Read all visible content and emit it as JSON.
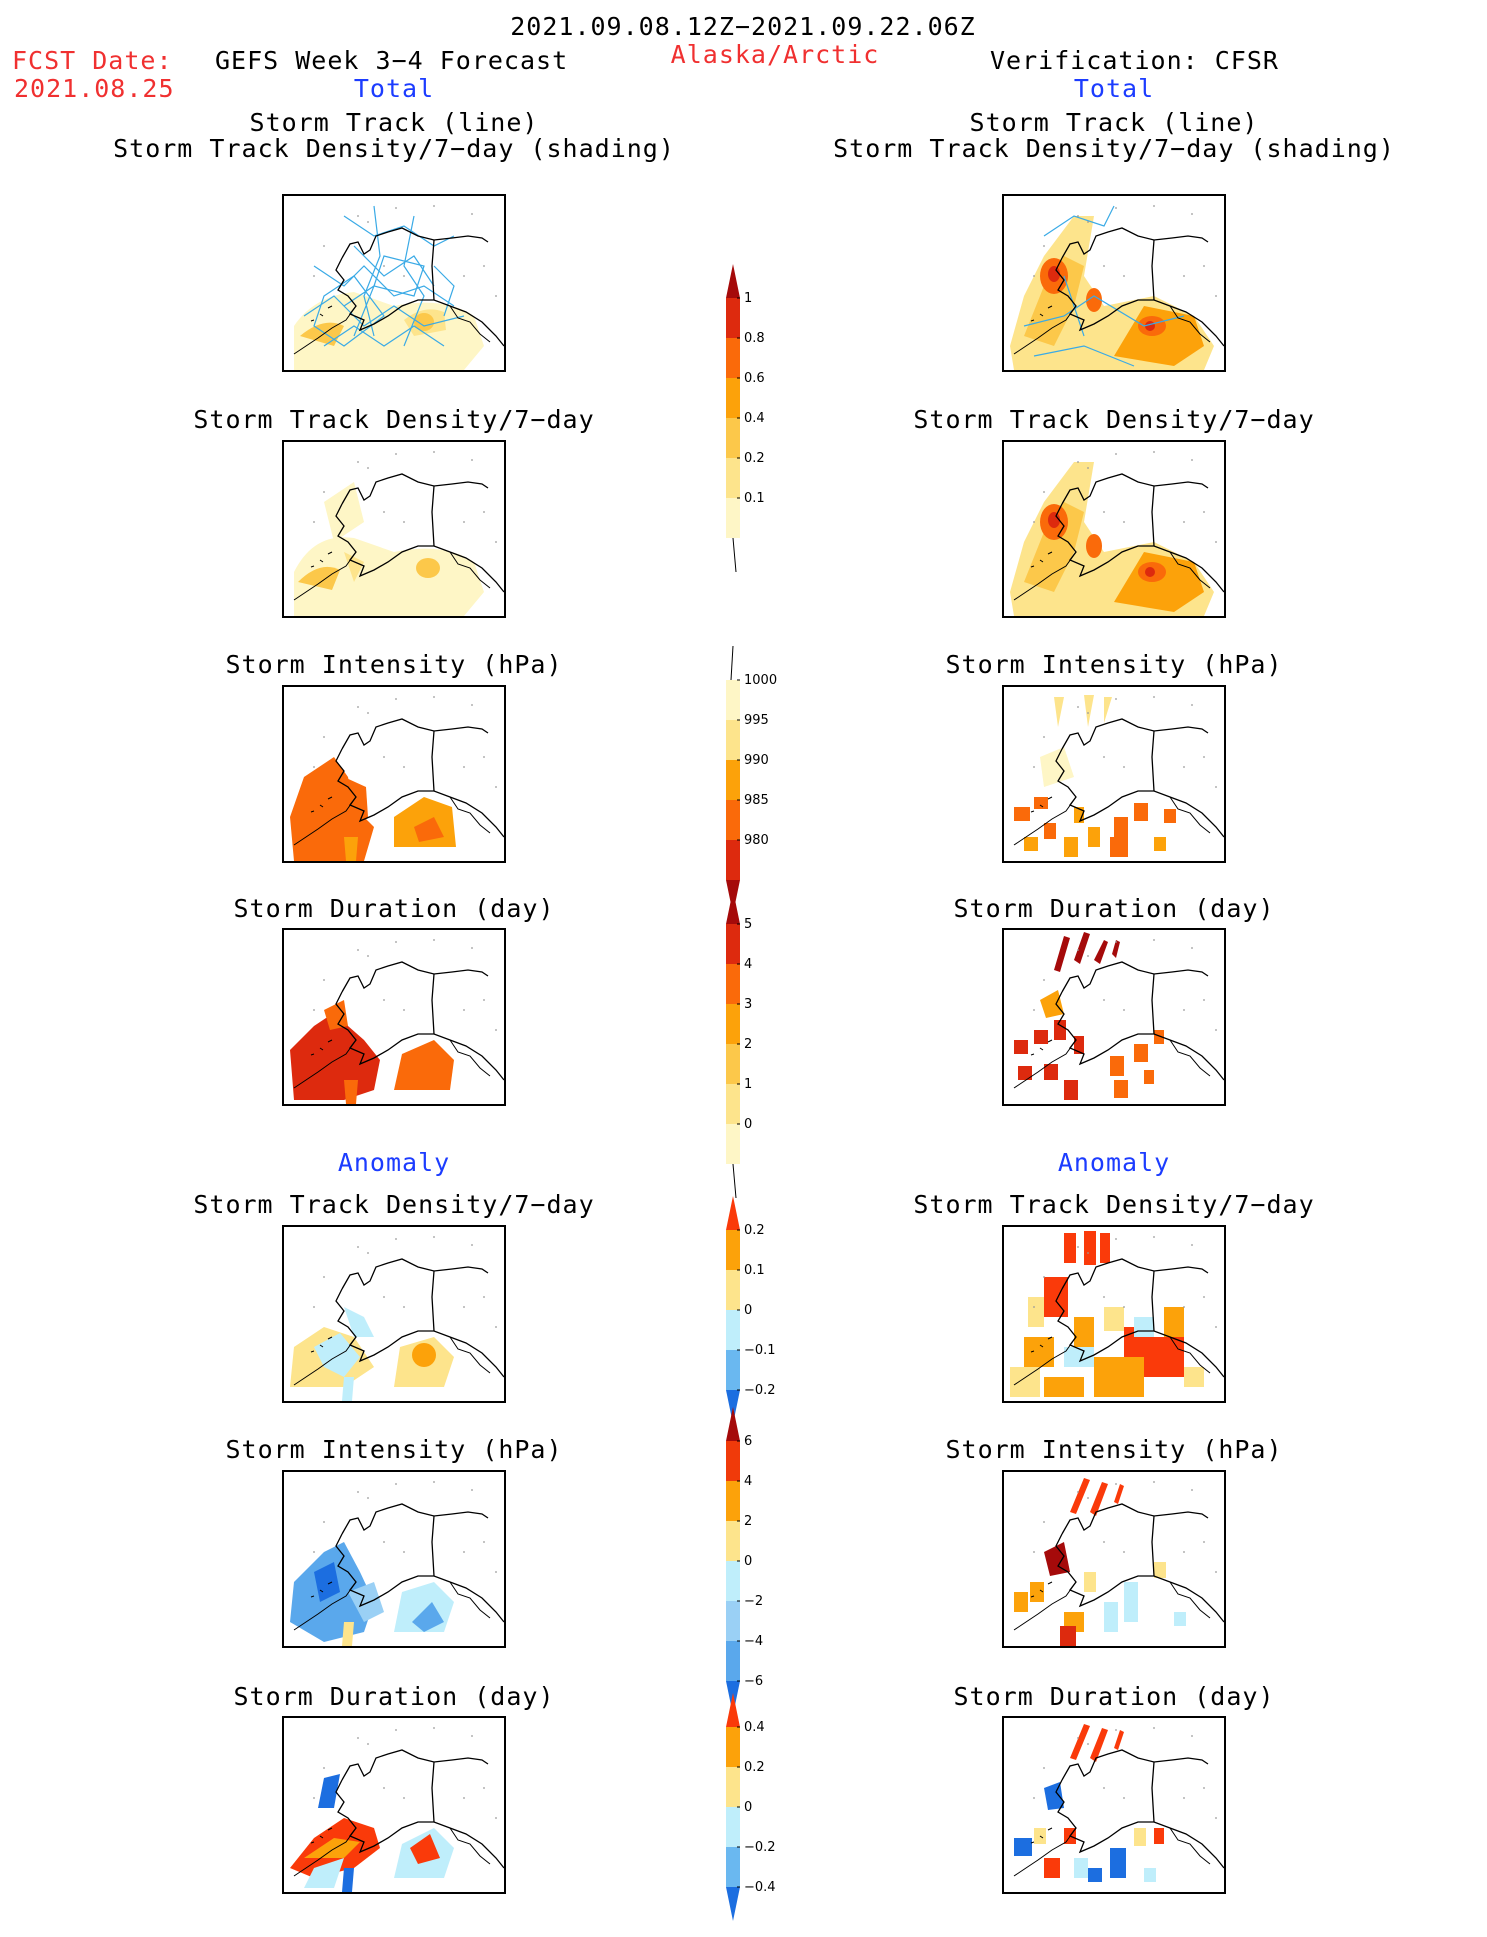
{
  "header": {
    "date_range": "2021.09.08.12Z−2021.09.22.06Z",
    "fcst_date_label": "FCST Date:",
    "fcst_date_value": "2021.08.25",
    "forecast_title": "GEFS Week 3−4 Forecast",
    "region": "Alaska/Arctic",
    "verification": "Verification: CFSR"
  },
  "sections": {
    "total_left": "Total",
    "total_right": "Total",
    "anomaly_left": "Anomaly",
    "anomaly_right": "Anomaly"
  },
  "panel_titles": {
    "track_line": "Storm Track (line)",
    "track_density_shading": "Storm Track Density/7−day (shading)",
    "track_density": "Storm Track Density/7−day",
    "intensity": "Storm Intensity (hPa)",
    "duration": "Storm Duration (day)"
  },
  "colorbars": {
    "total_density": {
      "ticks": [
        "1",
        "0.8",
        "0.6",
        "0.4",
        "0.2",
        "0.1"
      ],
      "colors": [
        "#a50a0a",
        "#dd2a0e",
        "#fa6a0a",
        "#fca20a",
        "#fcc84a",
        "#fde48c",
        "#fef6c6"
      ]
    },
    "total_intensity": {
      "ticks": [
        "1000",
        "995",
        "990",
        "985",
        "980"
      ],
      "colors": [
        "#fef6c6",
        "#fde48c",
        "#fca20a",
        "#fa6a0a",
        "#dd2a0e",
        "#a50a0a"
      ]
    },
    "total_duration": {
      "ticks": [
        "5",
        "4",
        "3",
        "2",
        "1",
        "0"
      ],
      "colors": [
        "#a50a0a",
        "#dd2a0e",
        "#fa6a0a",
        "#fca20a",
        "#fcc84a",
        "#fde48c",
        "#fef6c6"
      ]
    },
    "anom_density": {
      "ticks": [
        "0.2",
        "0.1",
        "0",
        "−0.1",
        "−0.2"
      ],
      "colors": [
        "#fa3a0a",
        "#fca20a",
        "#fde48c",
        "#bfeefb",
        "#6ab8f0",
        "#1c6ee0"
      ]
    },
    "anom_intensity": {
      "ticks": [
        "6",
        "4",
        "2",
        "0",
        "−2",
        "−4",
        "−6"
      ],
      "colors": [
        "#a50a0a",
        "#f03a0a",
        "#fca20a",
        "#fde48c",
        "#bfeefb",
        "#9ad0f5",
        "#5aa8ec",
        "#1c6ee0"
      ]
    },
    "anom_duration": {
      "ticks": [
        "0.4",
        "0.2",
        "0",
        "−0.2",
        "−0.4"
      ],
      "colors": [
        "#fa3a0a",
        "#fca20a",
        "#fde48c",
        "#bfeefb",
        "#6ab8f0",
        "#1c6ee0"
      ]
    }
  }
}
